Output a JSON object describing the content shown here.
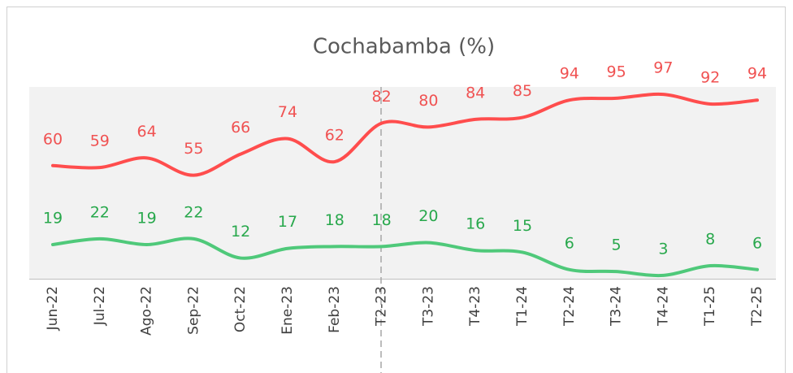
{
  "chart_data": {
    "type": "line",
    "title": "Cochabamba (%)",
    "categories": [
      "Jun-22",
      "Jul-22",
      "Ago-22",
      "Sep-22",
      "Oct-22",
      "Ene-23",
      "Feb-23",
      "T2-23",
      "T3-23",
      "T4-23",
      "T1-24",
      "T2-24",
      "T3-24",
      "T4-24",
      "T1-25",
      "T2-25"
    ],
    "series": [
      {
        "color": "#ff4d4d",
        "values": [
          60,
          59,
          64,
          55,
          66,
          74,
          62,
          82,
          80,
          84,
          85,
          94,
          95,
          97,
          92,
          94
        ]
      },
      {
        "color": "#4fc97a",
        "values": [
          19,
          22,
          19,
          22,
          12,
          17,
          18,
          18,
          20,
          16,
          15,
          6,
          5,
          3,
          8,
          6
        ]
      }
    ],
    "ylim": [
      0,
      100
    ]
  }
}
